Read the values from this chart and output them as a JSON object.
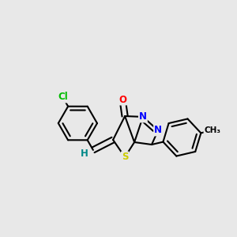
{
  "bg_color": "#e8e8e8",
  "atom_colors": {
    "S": "#cccc00",
    "N": "#0000ff",
    "O": "#ff0000",
    "Cl": "#00bb00",
    "H": "#008888",
    "C": "#000000"
  },
  "bond_color": "#000000",
  "bond_lw": 1.5
}
